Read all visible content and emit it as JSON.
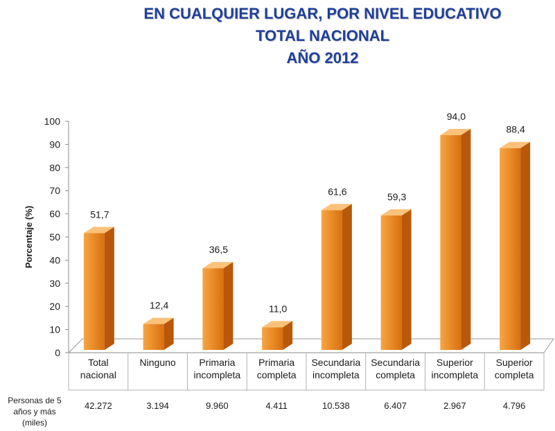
{
  "title_lines": [
    "EN CUALQUIER LUGAR, POR NIVEL EDUCATIVO",
    "TOTAL NACIONAL",
    "AÑO 2012"
  ],
  "chart_data": {
    "type": "bar",
    "title": "EN CUALQUIER LUGAR, POR NIVEL EDUCATIVO TOTAL NACIONAL AÑO 2012",
    "ylabel": "Porcentaje (%)",
    "xlabel": "",
    "ylim": [
      0,
      100
    ],
    "yticks": [
      0,
      10,
      20,
      30,
      40,
      50,
      60,
      70,
      80,
      90,
      100
    ],
    "categories": [
      [
        "Total",
        "nacional"
      ],
      [
        "Ninguno"
      ],
      [
        "Primaria",
        "incompleta"
      ],
      [
        "Primaria",
        "completa"
      ],
      [
        "Secundaria",
        "incompleta"
      ],
      [
        "Secundaria",
        "completa"
      ],
      [
        "Superior",
        "incompleta"
      ],
      [
        "Superior",
        "completa"
      ]
    ],
    "values": [
      51.7,
      12.4,
      36.5,
      11.0,
      61.6,
      59.3,
      94.0,
      88.4
    ],
    "value_labels": [
      "51,7",
      "12,4",
      "36,5",
      "11,0",
      "61,6",
      "59,3",
      "94,0",
      "88,4"
    ],
    "grid": false,
    "bar_colors": {
      "front_light": "#f7a543",
      "front_dark": "#d9700e",
      "side": "#b9580a",
      "top": "#fcc27a"
    },
    "footer_row": {
      "label_lines": [
        "Personas de 5",
        "años y más",
        "(miles)"
      ],
      "values": [
        "42.272",
        "3.194",
        "9.960",
        "4.411",
        "10.538",
        "6.407",
        "2.967",
        "4.796"
      ]
    }
  }
}
